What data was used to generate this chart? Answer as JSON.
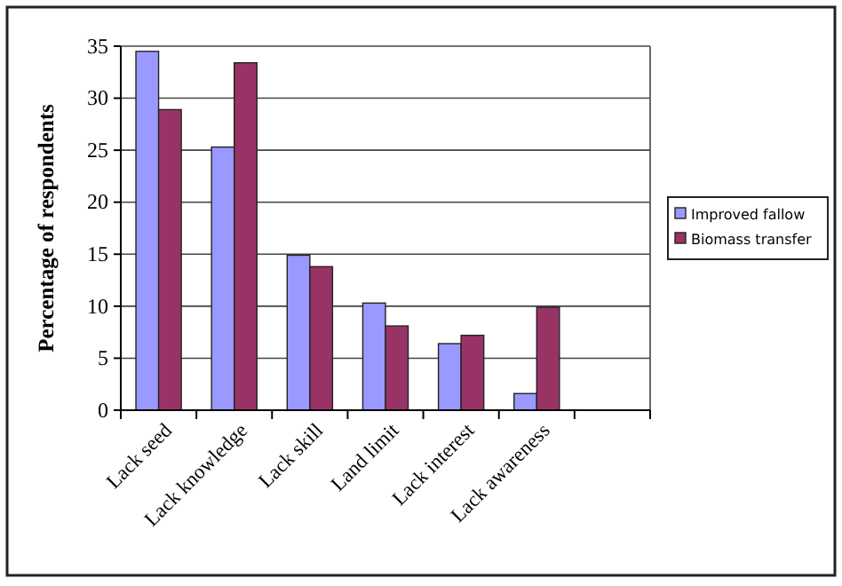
{
  "chart_data": {
    "type": "bar",
    "ylabel": "Percentage of respondents",
    "categories": [
      "Lack seed",
      "Lack knowledge",
      "Lack skill",
      "Land limit",
      "Lack interest",
      "Lack awareness",
      null
    ],
    "series": [
      {
        "name": "Improved fallow",
        "color": "#9999ff",
        "values": [
          34.5,
          25.3,
          14.9,
          10.3,
          6.4,
          1.6,
          null
        ]
      },
      {
        "name": "Biomass transfer",
        "color": "#993366",
        "values": [
          28.9,
          33.4,
          13.8,
          8.1,
          7.2,
          9.9,
          null
        ]
      }
    ],
    "ylim": [
      0,
      35
    ],
    "yticks": [
      0,
      5,
      10,
      15,
      20,
      25,
      30,
      35
    ],
    "grid": "y",
    "legend": "right"
  }
}
